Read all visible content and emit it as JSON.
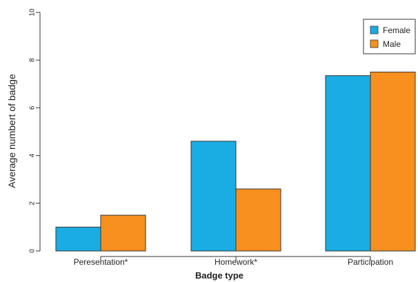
{
  "chart_data": {
    "type": "bar",
    "categories": [
      "Peresentation*",
      "Homework*",
      "Participation"
    ],
    "series": [
      {
        "name": "Female",
        "values": [
          1.0,
          4.6,
          7.35
        ],
        "color": "#1aade3"
      },
      {
        "name": "Male",
        "values": [
          1.5,
          2.6,
          7.5
        ],
        "color": "#f7901e"
      }
    ],
    "xlabel": "Badge type",
    "ylabel": "Average numbert of badge",
    "ylim": [
      0,
      10
    ],
    "yticks": [
      "0",
      "2",
      "4",
      "6",
      "8",
      "10"
    ],
    "grid": false,
    "legend": "top-right",
    "bar_edge_color": "#333333"
  }
}
